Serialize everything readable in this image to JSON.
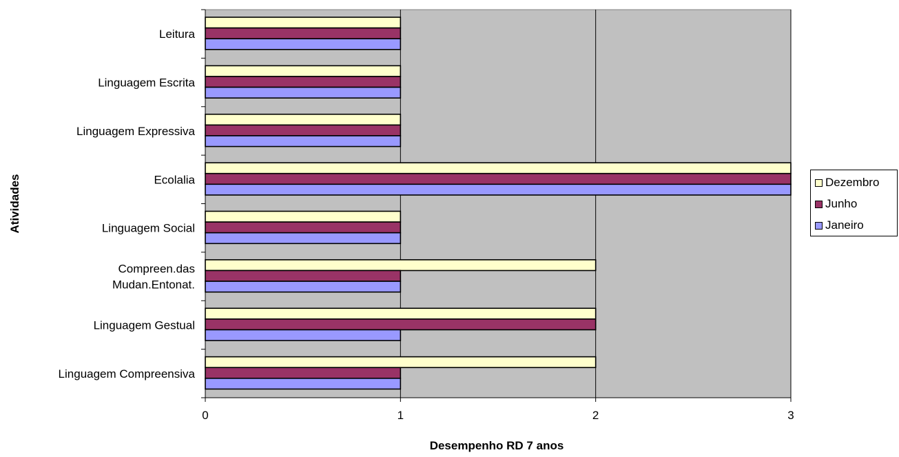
{
  "chart_data": {
    "type": "bar",
    "orientation": "horizontal",
    "categories": [
      "Leitura",
      "Linguagem Escrita",
      "Linguagem Expressiva",
      "Ecolalia",
      "Linguagem Social",
      "Compreen.das Mudan.Entonat.",
      "Linguagem Gestual",
      "Linguagem Compreensiva"
    ],
    "category_lines": [
      [
        "Leitura"
      ],
      [
        "Linguagem Escrita"
      ],
      [
        "Linguagem Expressiva"
      ],
      [
        "Ecolalia"
      ],
      [
        "Linguagem Social"
      ],
      [
        "Compreen.das",
        "Mudan.Entonat."
      ],
      [
        "Linguagem Gestual"
      ],
      [
        "Linguagem Compreensiva"
      ]
    ],
    "series": [
      {
        "name": "Dezembro",
        "color": "#ffffcc",
        "values": [
          1,
          1,
          1,
          3,
          1,
          2,
          2,
          2
        ]
      },
      {
        "name": "Junho",
        "color": "#993366",
        "values": [
          1,
          1,
          1,
          3,
          1,
          1,
          2,
          1
        ]
      },
      {
        "name": "Janeiro",
        "color": "#9999ff",
        "values": [
          1,
          1,
          1,
          3,
          1,
          1,
          1,
          1
        ]
      }
    ],
    "xlabel": "Desempenho RD 7 anos",
    "ylabel": "Atividades",
    "xlim": [
      0,
      3
    ],
    "xticks": [
      "0",
      "1",
      "2",
      "3"
    ],
    "grid": true,
    "plot_background": "#c0c0c0",
    "legend_position": "right"
  }
}
